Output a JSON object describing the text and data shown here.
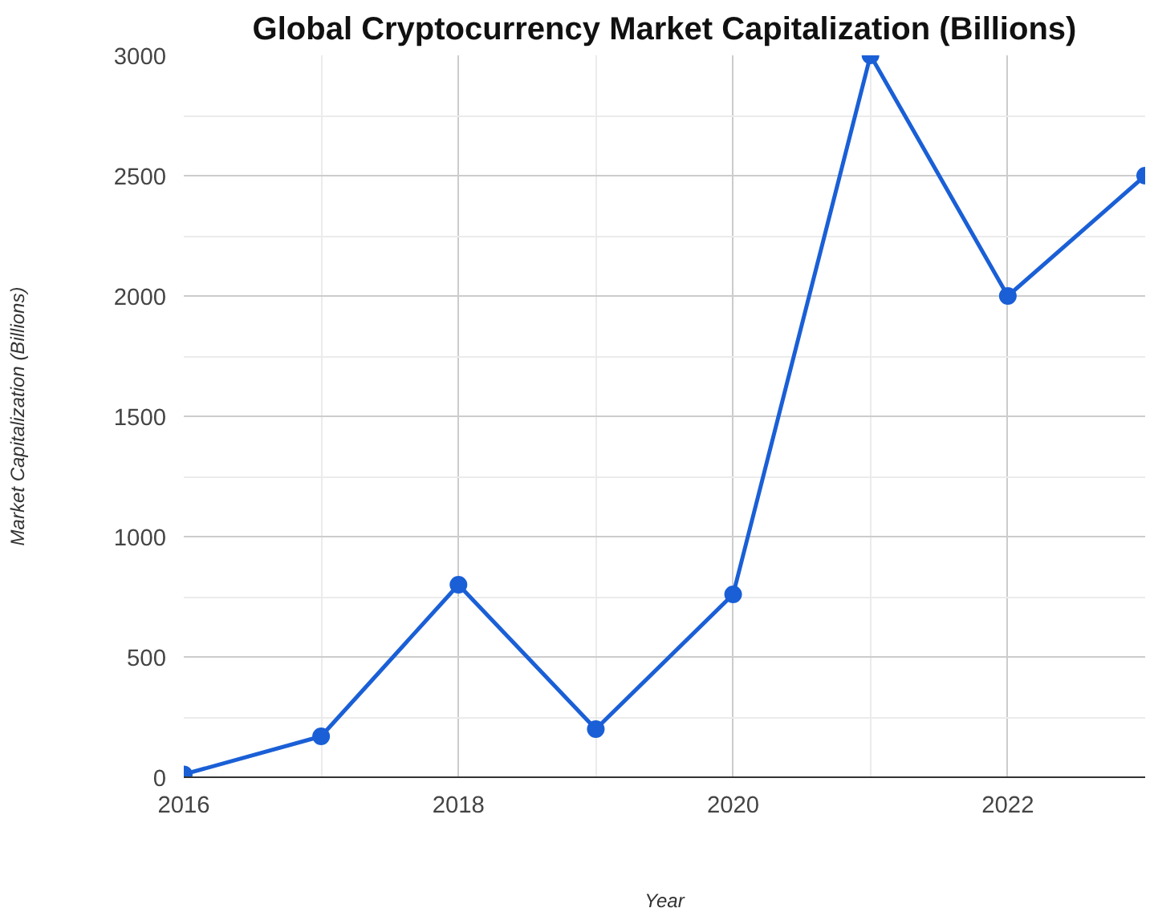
{
  "chart_data": {
    "type": "line",
    "title": "Global Cryptocurrency Market Capitalization (Billions)",
    "xlabel": "Year",
    "ylabel": "Market Capitalization (Billions)",
    "x": [
      2016,
      2017,
      2018,
      2019,
      2020,
      2021,
      2022,
      2023
    ],
    "series": [
      {
        "color": "#1a5fd6",
        "values": [
          12,
          170,
          800,
          200,
          760,
          3000,
          2000,
          2500
        ]
      }
    ],
    "xlim": [
      2016,
      2023
    ],
    "xticks": [
      2016,
      2018,
      2020,
      2022
    ],
    "ylim": [
      0,
      3000
    ],
    "yticks": [
      0,
      500,
      1000,
      1500,
      2000,
      2500,
      3000
    ],
    "grid": true,
    "marker": "circle",
    "line_style": "solid"
  }
}
